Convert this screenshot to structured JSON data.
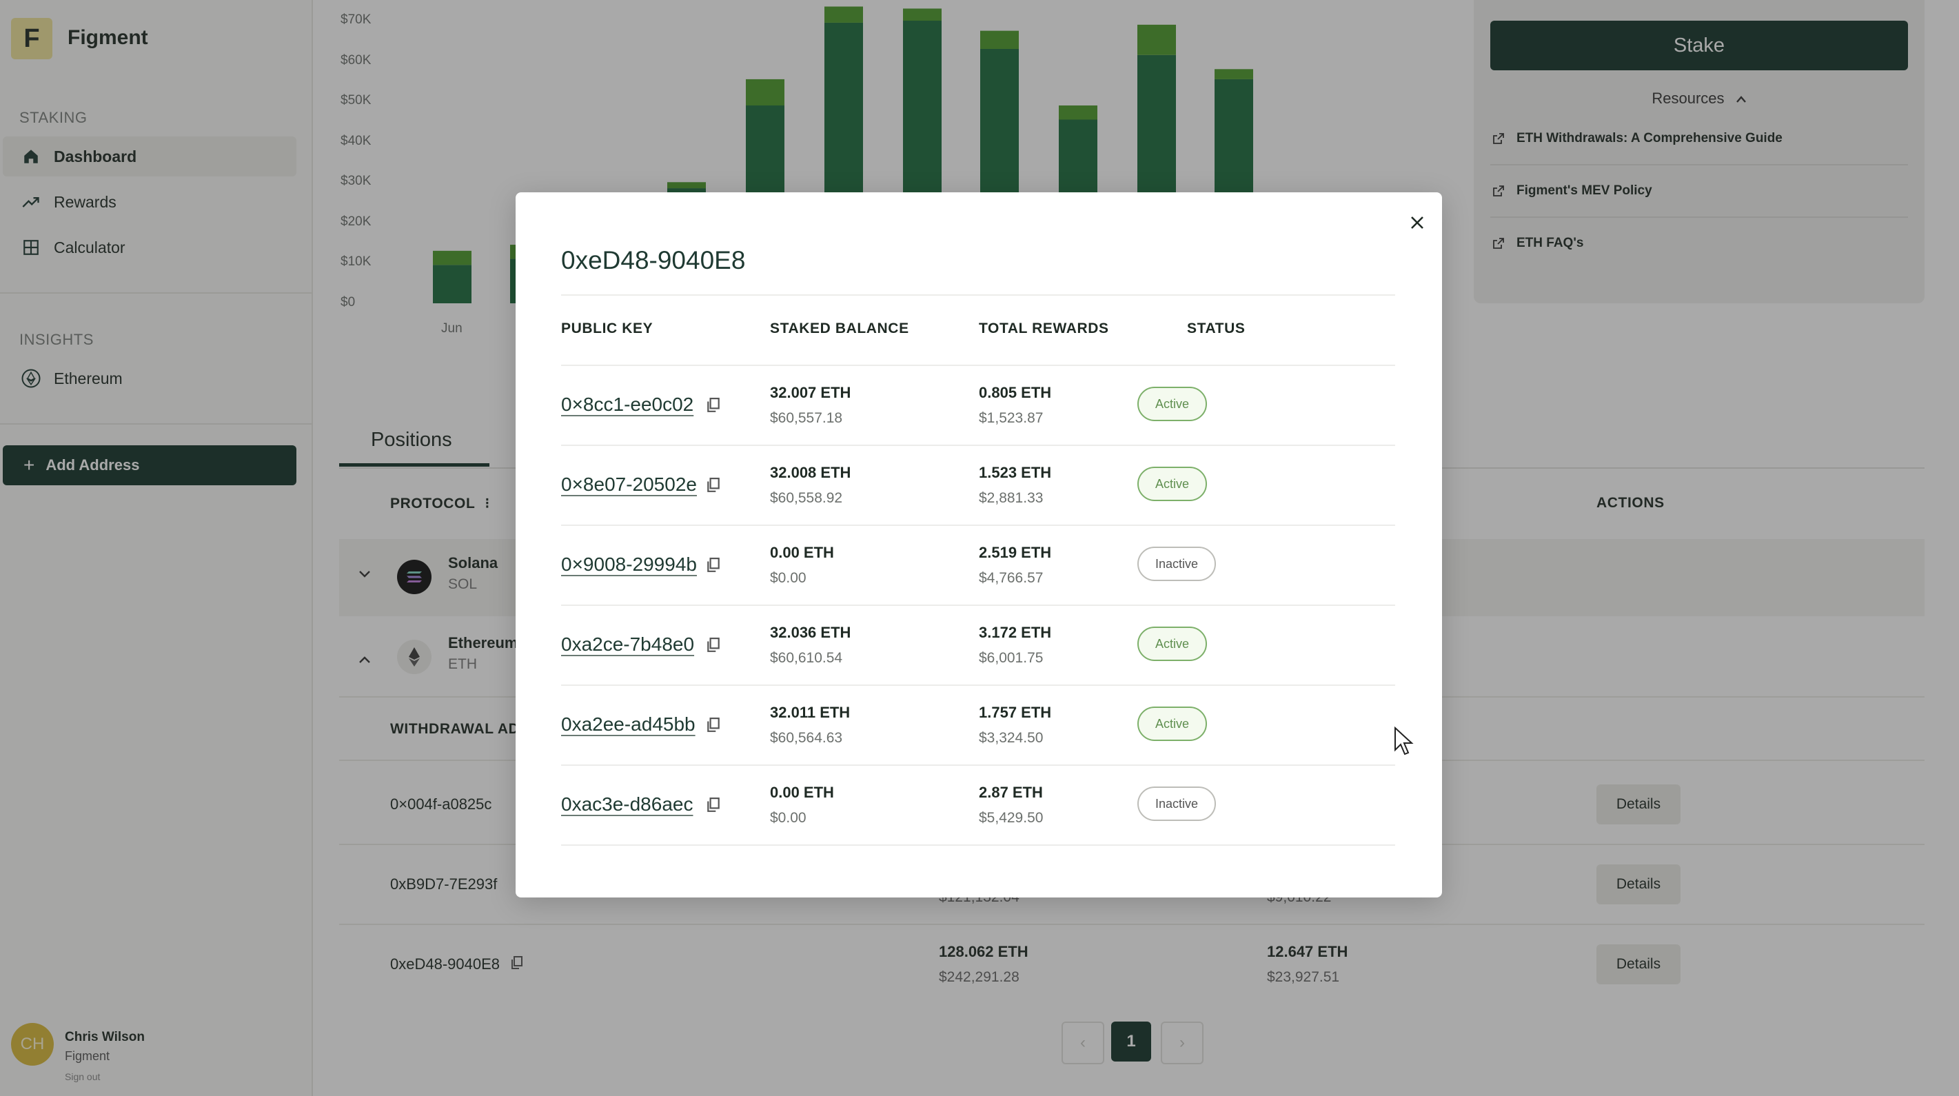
{
  "app": {
    "logo_letter": "F",
    "brand": "Figment"
  },
  "sidebar": {
    "staking_label": "STAKING",
    "insights_label": "INSIGHTS",
    "items": [
      {
        "label": "Dashboard",
        "icon": "home-icon",
        "active": true
      },
      {
        "label": "Rewards",
        "icon": "trending-up-icon",
        "active": false
      },
      {
        "label": "Calculator",
        "icon": "calculator-icon",
        "active": false
      }
    ],
    "insights": [
      {
        "label": "Ethereum",
        "icon": "ethereum-icon"
      }
    ],
    "add_address_label": "Add Address",
    "user": {
      "initials": "CH",
      "name": "Chris Wilson",
      "org": "Figment",
      "sign_out": "Sign out"
    }
  },
  "chart_data": {
    "type": "bar",
    "stacked": true,
    "y_ticks": [
      "$70K",
      "$60K",
      "$50K",
      "$40K",
      "$30K",
      "$20K",
      "$10K",
      "$0"
    ],
    "ylim": [
      0,
      70000
    ],
    "x_tick_visible": "Jun",
    "colors": {
      "base": "#1c6b3c",
      "top": "#4c9a2a"
    },
    "bars": [
      {
        "base": 9500,
        "top": 3500
      },
      {
        "base": 11000,
        "top": 3500
      },
      {
        "base": 28500,
        "top": 1500
      },
      {
        "base": 49000,
        "top": 6500
      },
      {
        "base": 69500,
        "top": 4000
      },
      {
        "base": 70000,
        "top": 3000
      },
      {
        "base": 63000,
        "top": 4500
      },
      {
        "base": 45500,
        "top": 3500
      },
      {
        "base": 61500,
        "top": 7500
      },
      {
        "base": 55500,
        "top": 2500
      }
    ]
  },
  "main": {
    "tab_positions": "Positions",
    "col_protocol": "PROTOCOL",
    "col_actions": "ACTIONS",
    "protocols": [
      {
        "name": "Solana",
        "symbol": "SOL"
      },
      {
        "name": "Ethereum",
        "symbol": "ETH"
      }
    ],
    "withdrawal_header": "WITHDRAWAL AD",
    "addresses": [
      {
        "addr": "0×004f-a0825c",
        "details": "Details"
      },
      {
        "addr": "0xB9D7-7E293f",
        "balance_sub": "$121,132.04",
        "rewards_sub": "$9,010.22",
        "details": "Details"
      },
      {
        "addr": "0xeD48-9040E8",
        "balance": "128.062 ETH",
        "balance_sub": "$242,291.28",
        "rewards": "12.647 ETH",
        "rewards_sub": "$23,927.51",
        "details": "Details"
      }
    ],
    "pagination": {
      "current": "1",
      "prev": "‹",
      "next": "›"
    }
  },
  "resources": {
    "stake_label": "Stake",
    "toggle_label": "Resources",
    "links": [
      "ETH Withdrawals: A Comprehensive Guide",
      "Figment's MEV Policy",
      "ETH FAQ's"
    ]
  },
  "modal": {
    "title": "0xeD48-9040E8",
    "headers": {
      "public_key": "PUBLIC KEY",
      "staked_balance": "STAKED BALANCE",
      "total_rewards": "TOTAL REWARDS",
      "status": "STATUS"
    },
    "rows": [
      {
        "key": "0×8cc1-ee0c02",
        "balance": "32.007 ETH",
        "balance_usd": "$60,557.18",
        "rewards": "0.805 ETH",
        "rewards_usd": "$1,523.87",
        "status": "Active"
      },
      {
        "key": "0×8e07-20502e",
        "balance": "32.008 ETH",
        "balance_usd": "$60,558.92",
        "rewards": "1.523 ETH",
        "rewards_usd": "$2,881.33",
        "status": "Active"
      },
      {
        "key": "0×9008-29994b",
        "balance": "0.00 ETH",
        "balance_usd": "$0.00",
        "rewards": "2.519 ETH",
        "rewards_usd": "$4,766.57",
        "status": "Inactive"
      },
      {
        "key": "0xa2ce-7b48e0",
        "balance": "32.036 ETH",
        "balance_usd": "$60,610.54",
        "rewards": "3.172 ETH",
        "rewards_usd": "$6,001.75",
        "status": "Active"
      },
      {
        "key": "0xa2ee-ad45bb",
        "balance": "32.011 ETH",
        "balance_usd": "$60,564.63",
        "rewards": "1.757 ETH",
        "rewards_usd": "$3,324.50",
        "status": "Active"
      },
      {
        "key": "0xac3e-d86aec",
        "balance": "0.00 ETH",
        "balance_usd": "$0.00",
        "rewards": "2.87 ETH",
        "rewards_usd": "$5,429.50",
        "status": "Inactive"
      }
    ]
  }
}
